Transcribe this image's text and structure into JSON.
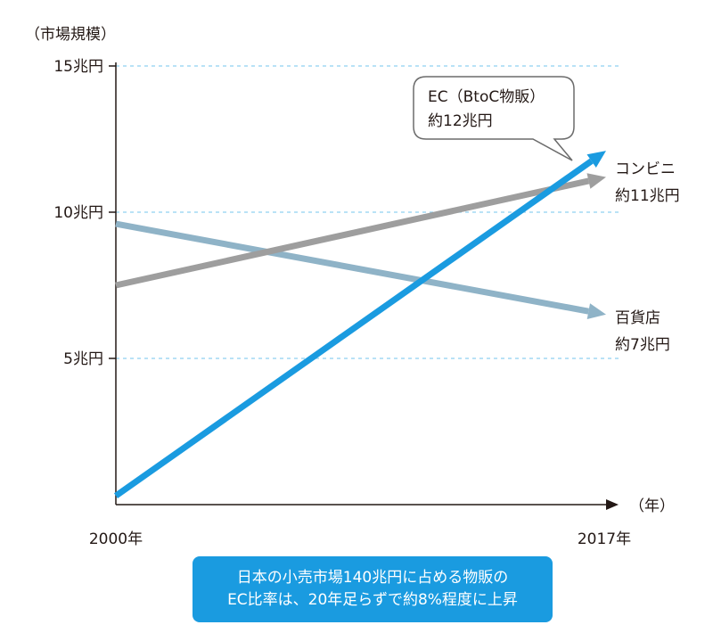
{
  "chart_data": {
    "type": "line",
    "ylabel": "（市場規模）",
    "xlabel": "（年）",
    "x": [
      "2000年",
      "2017年"
    ],
    "xlim": [
      2000,
      2017
    ],
    "ylim": [
      0,
      15
    ],
    "yticks": [
      {
        "value": 5,
        "label": "5兆円"
      },
      {
        "value": 10,
        "label": "10兆円"
      },
      {
        "value": 15,
        "label": "15兆円"
      }
    ],
    "grid": "horizontal dashed",
    "series": [
      {
        "key": "dept",
        "values": [
          9.6,
          6.5
        ],
        "color": "#8fb3c7",
        "label_lines": [
          "百貨店",
          "約7兆円"
        ]
      },
      {
        "key": "conv",
        "values": [
          7.5,
          11.2
        ],
        "color": "#9e9e9e",
        "label_lines": [
          "コンビニ",
          "約11兆円"
        ]
      },
      {
        "key": "ec",
        "values": [
          0.3,
          12.1
        ],
        "color": "#1a9be0",
        "label_lines": [
          "EC（BtoC物販）",
          "約12兆円"
        ]
      }
    ],
    "callout_series": "ec"
  },
  "caption": {
    "line1": "日本の小売市場140兆円に占める物販の",
    "line2": "EC比率は、20年足らずで約8%程度に上昇"
  },
  "colors": {
    "grid": "#8fd0f0",
    "axis": "#231815",
    "caption_bg": "#1a9be0"
  }
}
